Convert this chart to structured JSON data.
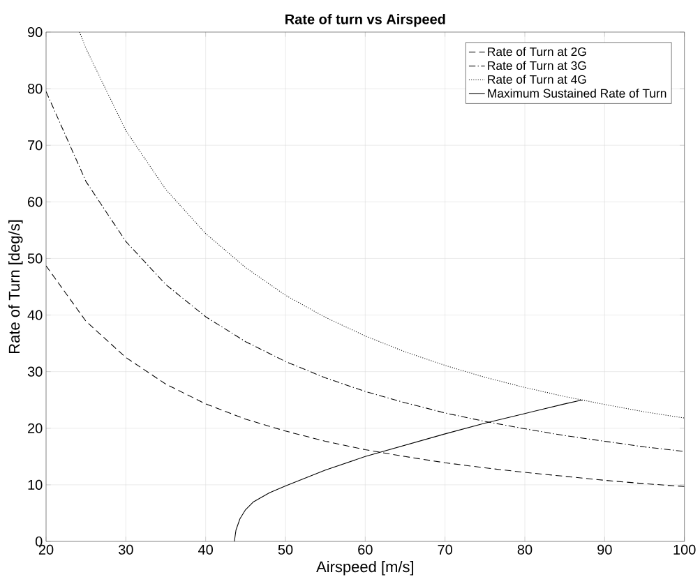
{
  "chart_data": {
    "type": "line",
    "title": "Rate of turn vs Airspeed",
    "xlabel": "Airspeed [m/s]",
    "ylabel": "Rate of Turn [deg/s]",
    "xlim": [
      20,
      100
    ],
    "ylim": [
      0,
      90
    ],
    "xticks": [
      20,
      30,
      40,
      50,
      60,
      70,
      80,
      90,
      100
    ],
    "yticks": [
      0,
      10,
      20,
      30,
      40,
      50,
      60,
      70,
      80,
      90
    ],
    "grid": true,
    "legend": "top right",
    "series": [
      {
        "name": "Rate of Turn at 2G",
        "color": "#000000",
        "line_style": "dashed",
        "x": [
          20,
          25,
          30,
          35,
          40,
          45,
          50,
          55,
          60,
          65,
          70,
          75,
          80,
          85,
          90,
          95,
          100
        ],
        "values": [
          48.7,
          38.9,
          32.5,
          27.8,
          24.3,
          21.6,
          19.5,
          17.7,
          16.2,
          15.0,
          13.9,
          13.0,
          12.2,
          11.5,
          10.8,
          10.2,
          9.7
        ]
      },
      {
        "name": "Rate of Turn at 3G",
        "color": "#000000",
        "line_style": "dashdot",
        "x": [
          20,
          25,
          30,
          35,
          40,
          45,
          50,
          55,
          60,
          65,
          70,
          75,
          80,
          85,
          90,
          95,
          100
        ],
        "values": [
          79.5,
          63.6,
          53.0,
          45.4,
          39.7,
          35.3,
          31.8,
          28.9,
          26.5,
          24.5,
          22.7,
          21.2,
          19.9,
          18.7,
          17.7,
          16.7,
          15.9
        ]
      },
      {
        "name": "Rate of Turn at 4G",
        "color": "#000000",
        "line_style": "dotted",
        "x": [
          24.2,
          25,
          30,
          35,
          40,
          45,
          50,
          55,
          60,
          65,
          70,
          75,
          80,
          85,
          90,
          95,
          100
        ],
        "values": [
          90,
          87.1,
          72.6,
          62.2,
          54.4,
          48.4,
          43.5,
          39.6,
          36.3,
          33.5,
          31.1,
          29.0,
          27.2,
          25.6,
          24.2,
          22.9,
          21.8
        ]
      },
      {
        "name": "Maximum Sustained Rate of Turn",
        "color": "#000000",
        "line_style": "solid",
        "x": [
          43.6,
          43.8,
          44.3,
          45,
          46,
          48,
          50,
          55,
          60,
          65,
          70,
          75,
          80,
          85,
          87.2
        ],
        "values": [
          0,
          2,
          4,
          5.6,
          7,
          8.6,
          9.8,
          12.6,
          15.0,
          17.0,
          19.0,
          20.9,
          22.6,
          24.3,
          25
        ]
      }
    ]
  }
}
